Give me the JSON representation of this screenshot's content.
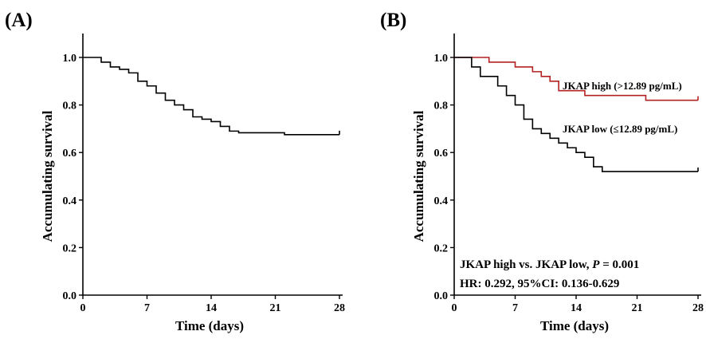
{
  "chart_data": [
    {
      "panel_label": "(A)",
      "type": "line",
      "step": true,
      "xlabel": "Time (days)",
      "ylabel": "Accumulating survival",
      "xlim": [
        0,
        28
      ],
      "ylim": [
        0,
        1.0
      ],
      "xticks": [
        "0",
        "7",
        "14",
        "21",
        "28"
      ],
      "yticks": [
        "0.0",
        "0.2",
        "0.4",
        "0.6",
        "0.8",
        "1.0"
      ],
      "grid": false,
      "series": [
        {
          "color": "#000000",
          "censor_end": true,
          "x": [
            0,
            2,
            3,
            4,
            5,
            6,
            7,
            8,
            9,
            10,
            11,
            12,
            13,
            14,
            15,
            16,
            17,
            22,
            28
          ],
          "y": [
            1.0,
            0.98,
            0.96,
            0.95,
            0.935,
            0.9,
            0.88,
            0.85,
            0.82,
            0.8,
            0.78,
            0.75,
            0.74,
            0.73,
            0.71,
            0.69,
            0.683,
            0.675,
            0.675
          ]
        }
      ]
    },
    {
      "panel_label": "(B)",
      "type": "line",
      "step": true,
      "xlabel": "Time (days)",
      "ylabel": "Accumulating survival",
      "xlim": [
        0,
        28
      ],
      "ylim": [
        0,
        1.0
      ],
      "xticks": [
        "0",
        "7",
        "14",
        "21",
        "28"
      ],
      "yticks": [
        "0.0",
        "0.2",
        "0.4",
        "0.6",
        "0.8",
        "1.0"
      ],
      "grid": false,
      "series": [
        {
          "name": "JKAP high (>12.89 pg/mL)",
          "color": "#b22222",
          "censor_end": true,
          "x": [
            0,
            4,
            7,
            9,
            10,
            11,
            12,
            15,
            22,
            28
          ],
          "y": [
            1.0,
            0.98,
            0.96,
            0.94,
            0.92,
            0.9,
            0.86,
            0.84,
            0.82,
            0.82
          ]
        },
        {
          "name": "JKAP low (≤12.89 pg/mL)",
          "color": "#000000",
          "censor_end": true,
          "x": [
            0,
            2,
            3,
            5,
            6,
            7,
            8,
            9,
            10,
            11,
            12,
            13,
            14,
            15,
            16,
            17,
            28
          ],
          "y": [
            1.0,
            0.96,
            0.92,
            0.88,
            0.84,
            0.8,
            0.74,
            0.7,
            0.68,
            0.66,
            0.64,
            0.62,
            0.6,
            0.58,
            0.54,
            0.52,
            0.52
          ]
        }
      ],
      "annotations": [
        {
          "parts": [
            "JKAP high vs. JKAP low, ",
            "P",
            " = 0.001"
          ]
        },
        {
          "parts": [
            "HR: 0.292, 95%CI: 0.136-0.629"
          ]
        }
      ]
    }
  ]
}
